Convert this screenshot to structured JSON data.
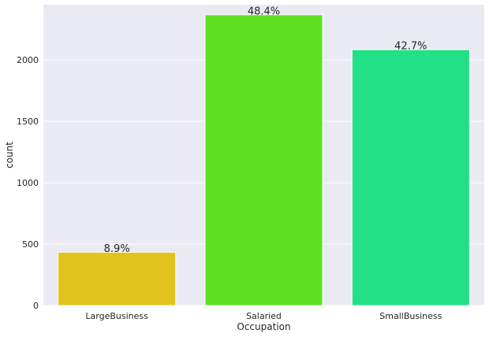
{
  "chart_data": {
    "type": "bar",
    "categories": [
      "LargeBusiness",
      "Salaried",
      "SmallBusiness"
    ],
    "values": [
      434,
      2368,
      2084
    ],
    "data_labels": [
      "8.9%",
      "48.4%",
      "42.7%"
    ],
    "colors": [
      "#e2c21c",
      "#5ce01f",
      "#22e086"
    ],
    "xlabel": "Occupation",
    "ylabel": "count",
    "ylim": [
      0,
      2450
    ],
    "yticks": [
      0,
      500,
      1000,
      1500,
      2000
    ],
    "ytick_labels": [
      "0",
      "500",
      "1000",
      "1500",
      "2000"
    ],
    "grid": true,
    "background": "#eaeaf2",
    "grid_color": "#ffffff"
  }
}
